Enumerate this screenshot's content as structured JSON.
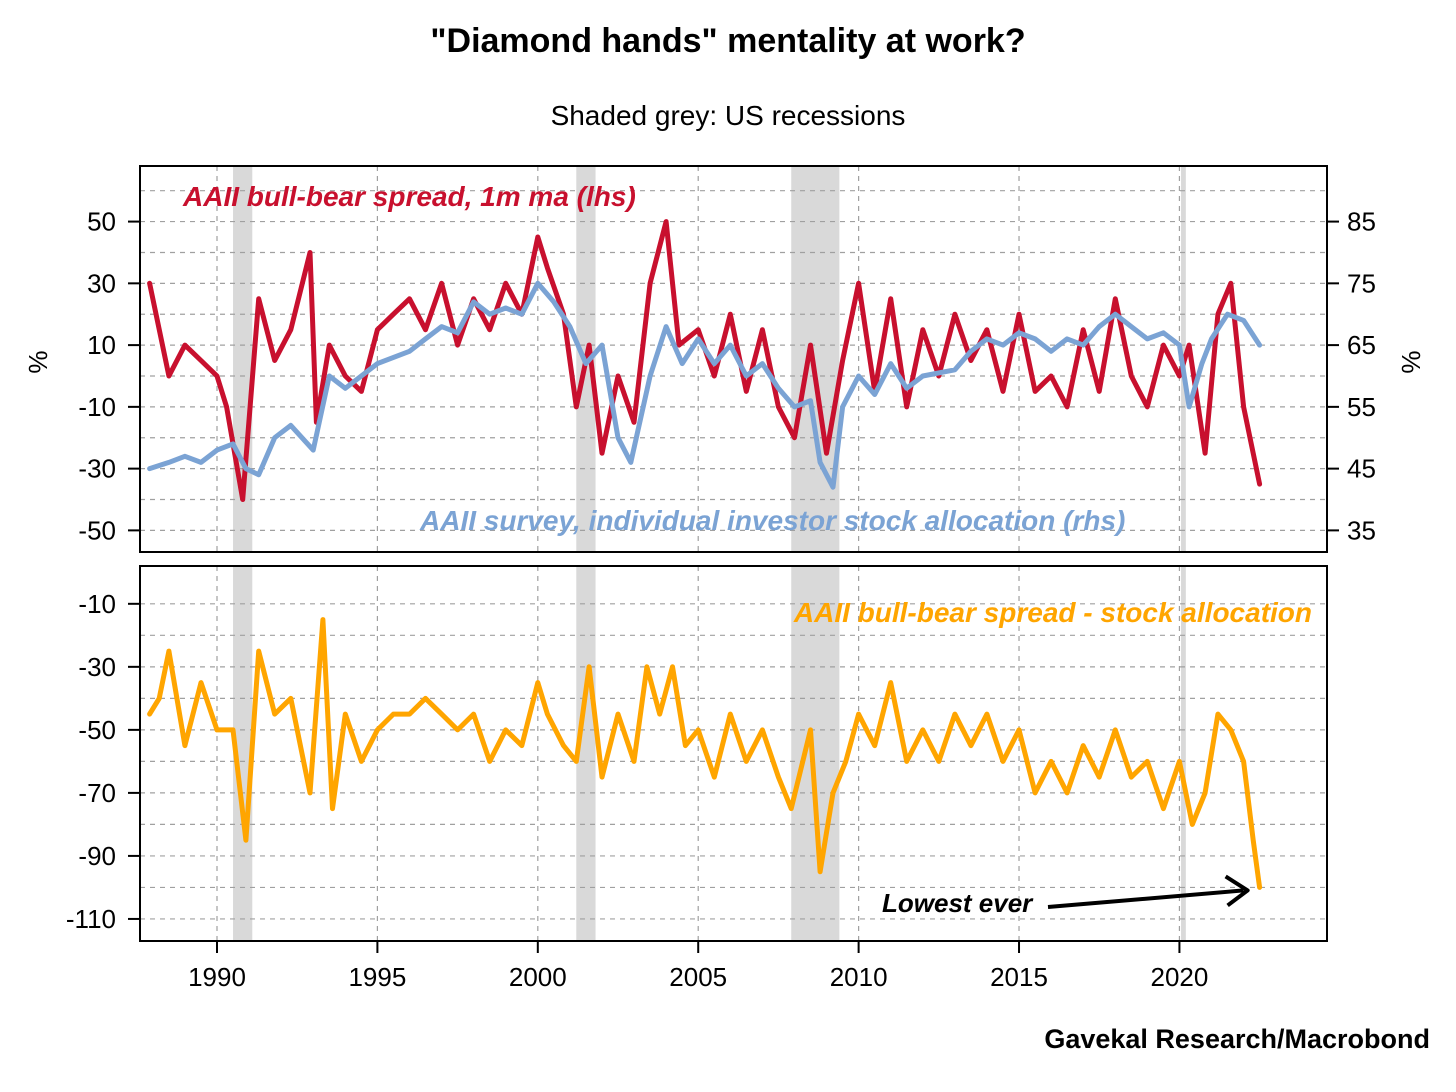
{
  "title": "\"Diamond hands\" mentality at work?",
  "subtitle": "Shaded grey: US recessions",
  "source": "Gavekal Research/Macrobond",
  "colors": {
    "spread": "#C8102E",
    "allocation": "#7BA3D4",
    "difference": "#FFA500",
    "recession": "#D9D9D9",
    "grid": "#A0A0A0",
    "annotation": "#000000"
  },
  "chart_data": [
    {
      "type": "line",
      "panel": "top",
      "title": "",
      "ylabel_left": "%",
      "ylabel_right": "%",
      "xlim": [
        1987.6,
        2024.6
      ],
      "ylim_left": [
        -57,
        68
      ],
      "ylim_right": [
        31.5,
        94
      ],
      "x_ticks": [
        1990,
        1995,
        2000,
        2005,
        2010,
        2015,
        2020
      ],
      "left_tick_labels": [
        "50",
        "30",
        "10",
        "-10",
        "-30",
        "-50"
      ],
      "left_tick_values": [
        50,
        30,
        10,
        -10,
        -30,
        -50
      ],
      "right_tick_labels": [
        "85",
        "75",
        "65",
        "55",
        "45",
        "35"
      ],
      "right_tick_values": [
        85,
        75,
        65,
        55,
        45,
        35
      ],
      "grid": true,
      "recessions": [
        [
          1990.5,
          1991.1
        ],
        [
          2001.2,
          2001.8
        ],
        [
          2007.9,
          2009.4
        ],
        [
          2020.05,
          2020.2
        ]
      ],
      "series": [
        {
          "name": "AAII bull-bear spread, 1m ma (lhs)",
          "axis": "left",
          "color": "#C8102E",
          "x": [
            1987.9,
            1988.5,
            1989.0,
            1989.5,
            1990.0,
            1990.3,
            1990.8,
            1991.3,
            1991.8,
            1992.3,
            1992.9,
            1993.1,
            1993.5,
            1994.0,
            1994.5,
            1995.0,
            1995.5,
            1996.0,
            1996.5,
            1997.0,
            1997.5,
            1998.0,
            1998.5,
            1999.0,
            1999.5,
            2000.0,
            2000.3,
            2000.8,
            2001.2,
            2001.6,
            2002.0,
            2002.5,
            2003.0,
            2003.5,
            2004.0,
            2004.4,
            2005.0,
            2005.5,
            2006.0,
            2006.5,
            2007.0,
            2007.5,
            2008.0,
            2008.5,
            2009.0,
            2009.5,
            2010.0,
            2010.5,
            2011.0,
            2011.5,
            2012.0,
            2012.5,
            2013.0,
            2013.5,
            2014.0,
            2014.5,
            2015.0,
            2015.5,
            2016.0,
            2016.5,
            2017.0,
            2017.5,
            2018.0,
            2018.5,
            2019.0,
            2019.5,
            2020.0,
            2020.3,
            2020.8,
            2021.2,
            2021.6,
            2022.0,
            2022.3,
            2022.5
          ],
          "values": [
            30,
            0,
            10,
            5,
            0,
            -10,
            -40,
            25,
            5,
            15,
            40,
            -15,
            10,
            0,
            -5,
            15,
            20,
            25,
            15,
            30,
            10,
            25,
            15,
            30,
            20,
            45,
            35,
            20,
            -10,
            10,
            -25,
            0,
            -15,
            30,
            50,
            10,
            15,
            0,
            20,
            -5,
            15,
            -10,
            -20,
            10,
            -25,
            5,
            30,
            -5,
            25,
            -10,
            15,
            0,
            20,
            5,
            15,
            -5,
            20,
            -5,
            0,
            -10,
            15,
            -5,
            25,
            0,
            -10,
            10,
            0,
            10,
            -25,
            20,
            30,
            -10,
            -25,
            -35
          ]
        },
        {
          "name": "AAII survey, individual investor stock allocation (rhs)",
          "axis": "right",
          "color": "#7BA3D4",
          "x": [
            1987.9,
            1988.5,
            1989.0,
            1989.5,
            1990.0,
            1990.5,
            1990.9,
            1991.3,
            1991.8,
            1992.3,
            1993.0,
            1993.5,
            1994.0,
            1995.0,
            1996.0,
            1996.5,
            1997.0,
            1997.5,
            1998.0,
            1998.5,
            1999.0,
            1999.5,
            2000.0,
            2000.5,
            2001.0,
            2001.5,
            2002.0,
            2002.5,
            2002.9,
            2003.5,
            2004.0,
            2004.5,
            2005.0,
            2005.5,
            2006.0,
            2006.5,
            2007.0,
            2007.5,
            2008.0,
            2008.5,
            2008.8,
            2009.2,
            2009.5,
            2010.0,
            2010.5,
            2011.0,
            2011.5,
            2012.0,
            2013.0,
            2013.5,
            2014.0,
            2014.5,
            2015.0,
            2015.5,
            2016.0,
            2016.5,
            2017.0,
            2017.5,
            2018.0,
            2018.5,
            2019.0,
            2019.5,
            2020.0,
            2020.3,
            2020.7,
            2021.0,
            2021.5,
            2022.0,
            2022.5
          ],
          "values": [
            45,
            46,
            47,
            46,
            48,
            49,
            45,
            44,
            50,
            52,
            48,
            60,
            58,
            62,
            64,
            66,
            68,
            67,
            72,
            70,
            71,
            70,
            75,
            72,
            68,
            62,
            65,
            50,
            46,
            60,
            68,
            62,
            66,
            62,
            65,
            60,
            62,
            58,
            55,
            56,
            46,
            42,
            55,
            60,
            57,
            62,
            58,
            60,
            61,
            64,
            66,
            65,
            67,
            66,
            64,
            66,
            65,
            68,
            70,
            68,
            66,
            67,
            65,
            55,
            62,
            66,
            70,
            69,
            65
          ]
        }
      ],
      "annotations": [
        {
          "text": "AAII bull-bear spread, 1m ma (lhs)",
          "color": "#C8102E"
        },
        {
          "text": "AAII survey, individual investor stock allocation (rhs)",
          "color": "#7BA3D4"
        }
      ]
    },
    {
      "type": "line",
      "panel": "bottom",
      "title": "",
      "xlim": [
        1987.6,
        2024.6
      ],
      "ylim": [
        -117,
        2
      ],
      "x_ticks": [
        1990,
        1995,
        2000,
        2005,
        2010,
        2015,
        2020
      ],
      "x_tick_labels": [
        "1990",
        "1995",
        "2000",
        "2005",
        "2010",
        "2015",
        "2020"
      ],
      "left_tick_labels": [
        "-10",
        "-30",
        "-50",
        "-70",
        "-90",
        "-110"
      ],
      "left_tick_values": [
        -10,
        -30,
        -50,
        -70,
        -90,
        -110
      ],
      "grid": true,
      "recessions": [
        [
          1990.5,
          1991.1
        ],
        [
          2001.2,
          2001.8
        ],
        [
          2007.9,
          2009.4
        ],
        [
          2020.05,
          2020.2
        ]
      ],
      "series": [
        {
          "name": "AAII bull-bear spread - stock allocation",
          "color": "#FFA500",
          "x": [
            1987.9,
            1988.2,
            1988.5,
            1989.0,
            1989.5,
            1990.0,
            1990.5,
            1990.9,
            1991.3,
            1991.8,
            1992.3,
            1992.9,
            1993.3,
            1993.6,
            1994.0,
            1994.5,
            1995.0,
            1995.5,
            1996.0,
            1996.5,
            1997.0,
            1997.5,
            1998.0,
            1998.5,
            1999.0,
            1999.5,
            2000.0,
            2000.3,
            2000.8,
            2001.2,
            2001.6,
            2002.0,
            2002.5,
            2003.0,
            2003.4,
            2003.8,
            2004.2,
            2004.6,
            2005.0,
            2005.5,
            2006.0,
            2006.5,
            2007.0,
            2007.5,
            2007.9,
            2008.5,
            2008.8,
            2009.2,
            2009.6,
            2010.0,
            2010.5,
            2011.0,
            2011.5,
            2012.0,
            2012.5,
            2013.0,
            2013.5,
            2014.0,
            2014.5,
            2015.0,
            2015.5,
            2016.0,
            2016.5,
            2017.0,
            2017.5,
            2018.0,
            2018.5,
            2019.0,
            2019.5,
            2020.0,
            2020.4,
            2020.8,
            2021.2,
            2021.6,
            2022.0,
            2022.3,
            2022.5
          ],
          "values": [
            -45,
            -40,
            -25,
            -55,
            -35,
            -50,
            -50,
            -85,
            -25,
            -45,
            -40,
            -70,
            -15,
            -75,
            -45,
            -60,
            -50,
            -45,
            -45,
            -40,
            -45,
            -50,
            -45,
            -60,
            -50,
            -55,
            -35,
            -45,
            -55,
            -60,
            -30,
            -65,
            -45,
            -60,
            -30,
            -45,
            -30,
            -55,
            -50,
            -65,
            -45,
            -60,
            -50,
            -65,
            -75,
            -50,
            -95,
            -70,
            -60,
            -45,
            -55,
            -35,
            -60,
            -50,
            -60,
            -45,
            -55,
            -45,
            -60,
            -50,
            -70,
            -60,
            -70,
            -55,
            -65,
            -50,
            -65,
            -60,
            -75,
            -60,
            -80,
            -70,
            -45,
            -50,
            -60,
            -85,
            -100
          ]
        }
      ],
      "annotations": [
        {
          "text": "AAII bull-bear spread - stock allocation",
          "color": "#FFA500"
        },
        {
          "text": "Lowest ever",
          "color": "#000000",
          "points_to": [
            2022.5,
            -100
          ]
        }
      ]
    }
  ]
}
